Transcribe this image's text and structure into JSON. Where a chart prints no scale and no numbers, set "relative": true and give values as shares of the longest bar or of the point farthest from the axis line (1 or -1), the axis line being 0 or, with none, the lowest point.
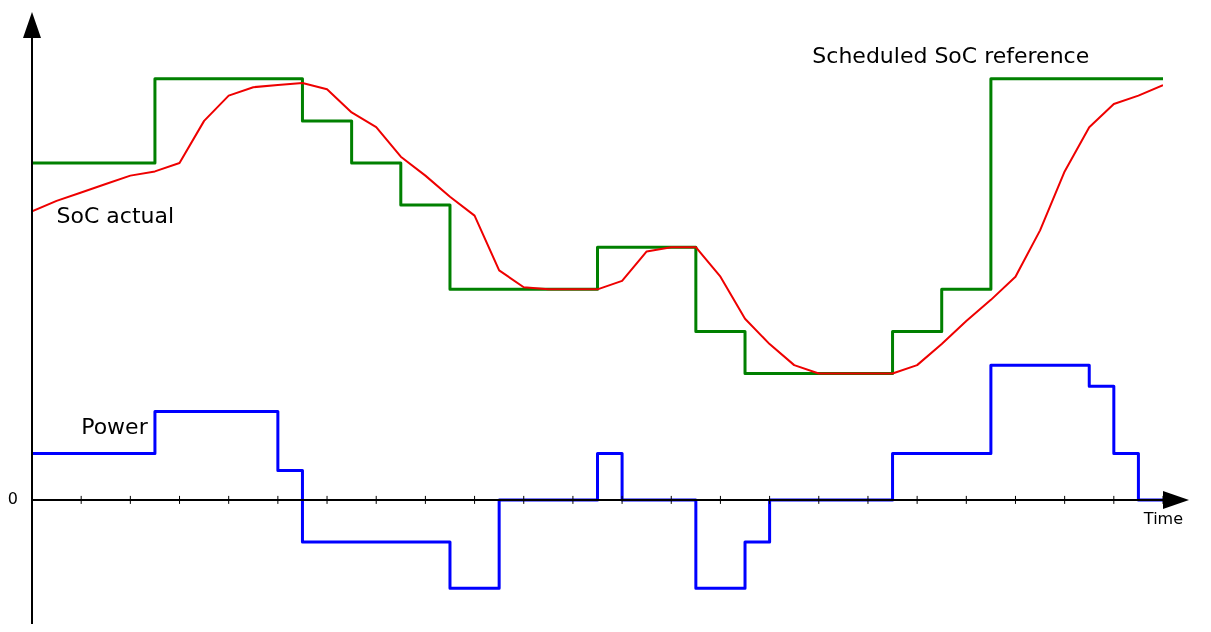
{
  "chart_data": {
    "type": "line",
    "relative": true,
    "xlabel": "Time",
    "legend": false,
    "marker": "none",
    "categories": [
      null,
      null,
      null,
      null,
      null,
      null,
      null,
      null,
      null,
      null,
      null,
      null,
      null,
      null,
      null,
      null,
      null,
      null,
      null,
      null,
      null,
      null,
      null,
      null,
      null,
      null,
      null,
      null,
      null,
      null,
      null,
      null,
      null,
      null,
      null,
      null,
      null,
      null,
      null,
      null,
      null,
      null,
      null,
      null,
      null,
      null,
      null
    ],
    "annotations": [
      "0"
    ],
    "series": [
      {
        "name": "Scheduled SoC reference",
        "type": "step",
        "color": "#008000",
        "values": [
          0.8,
          0.8,
          0.8,
          0.8,
          0.8,
          0.8,
          1,
          1,
          1,
          1,
          1,
          1,
          0.9,
          0.9,
          0.8,
          0.8,
          0.7,
          0.7,
          0.5,
          0.5,
          0.5,
          0.5,
          0.5,
          0.5,
          0.6,
          0.6,
          0.6,
          0.6,
          0.4,
          0.4,
          0.3,
          0.3,
          0.3,
          0.3,
          0.3,
          0.3,
          0.4,
          0.4,
          0.5,
          0.5,
          1,
          1,
          1,
          1,
          1,
          1,
          1
        ]
      },
      {
        "name": "SoC actual",
        "color": "#ee0000",
        "values": [
          0.685,
          0.71,
          0.73,
          0.75,
          0.77,
          0.78,
          0.8,
          0.9,
          0.96,
          0.98,
          0.985,
          0.99,
          0.975,
          0.92,
          0.885,
          0.815,
          0.77,
          0.72,
          0.675,
          0.545,
          0.505,
          0.5,
          0.5,
          0.5,
          0.52,
          0.59,
          0.6,
          0.6,
          0.53,
          0.43,
          0.37,
          0.32,
          0.3,
          0.3,
          0.3,
          0.3,
          0.32,
          0.37,
          0.425,
          0.475,
          0.53,
          0.64,
          0.78,
          0.885,
          0.94,
          0.96,
          0.985
        ]
      },
      {
        "name": "Power",
        "type": "step",
        "color": "#0000ff",
        "values": [
          0.11,
          0.11,
          0.11,
          0.11,
          0.11,
          0.11,
          0.21,
          0.21,
          0.21,
          0.21,
          0.21,
          0.07,
          -0.1,
          -0.1,
          -0.1,
          -0.1,
          -0.1,
          -0.1,
          -0.21,
          -0.21,
          0,
          0,
          0,
          0,
          0.11,
          0,
          0,
          0,
          -0.21,
          -0.21,
          -0.1,
          0,
          0,
          0,
          0,
          0,
          0.11,
          0.11,
          0.11,
          0.11,
          0.32,
          0.32,
          0.32,
          0.32,
          0.27,
          0.11,
          0
        ]
      }
    ]
  }
}
